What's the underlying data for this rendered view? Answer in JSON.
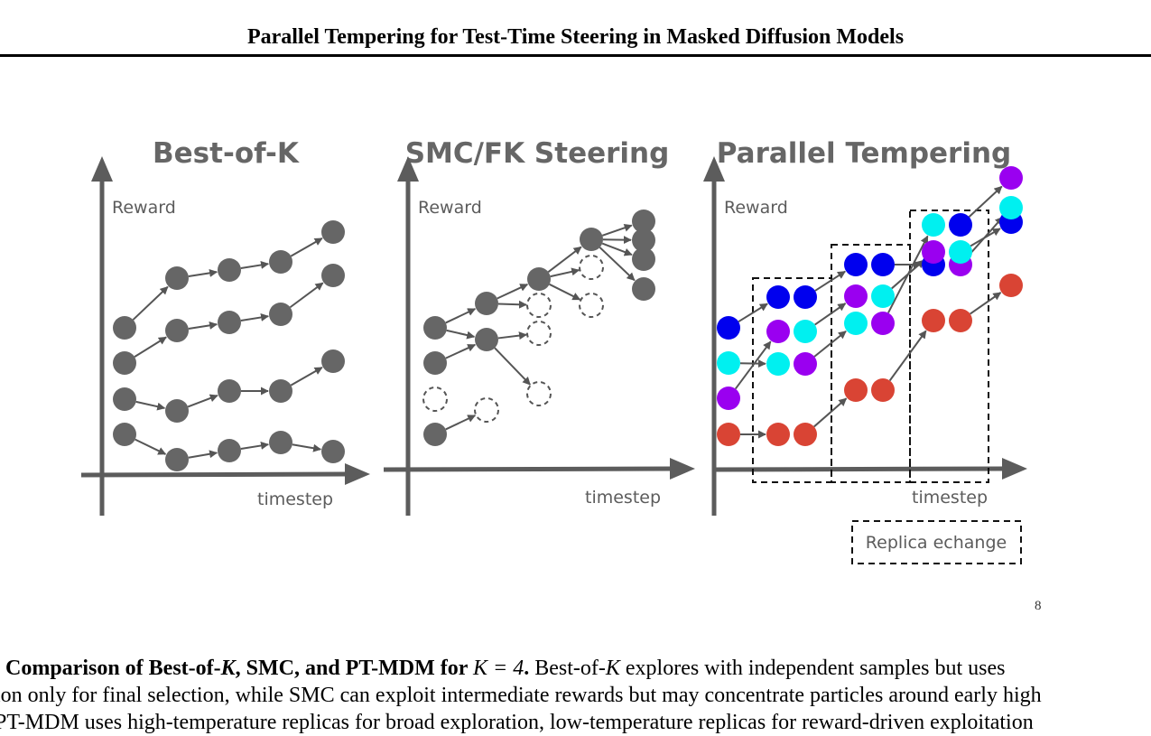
{
  "header": {
    "title": "Parallel Tempering for Test-Time Steering in Masked Diffusion Models"
  },
  "figure": {
    "panels": [
      {
        "title": "Best-of-K",
        "ylabel": "Reward",
        "xlabel": "timestep"
      },
      {
        "title": "SMC/FK Steering",
        "ylabel": "Reward",
        "xlabel": "timestep"
      },
      {
        "title": "Parallel Tempering",
        "ylabel": "Reward",
        "xlabel": "timestep"
      }
    ],
    "legend": {
      "label": "Replica echange"
    },
    "colors": {
      "axis": "#5c5c5c",
      "node": "#666666",
      "blue": "#0000ee",
      "cyan": "#00f0f0",
      "purple": "#9a00f0",
      "red": "#d94434"
    }
  },
  "page_number": "8",
  "caption": {
    "line1_prefix": ". ",
    "line1_bold": "Comparison of Best-of-",
    "line1_bold_math1": "K",
    "line1_bold_mid": ", SMC, and PT-MDM for ",
    "line1_bold_math2": "K = 4",
    "line1_bold_end": ".",
    "line1_rest_a": " Best-of-",
    "line1_rest_math": "K",
    "line1_rest_b": " explores with independent samples but uses",
    "line2": "ion only for final selection, while SMC can exploit intermediate rewards but may concentrate particles around early high",
    "line3": "PT-MDM uses high-temperature replicas for broad exploration, low-temperature replicas for reward-driven exploitation"
  }
}
